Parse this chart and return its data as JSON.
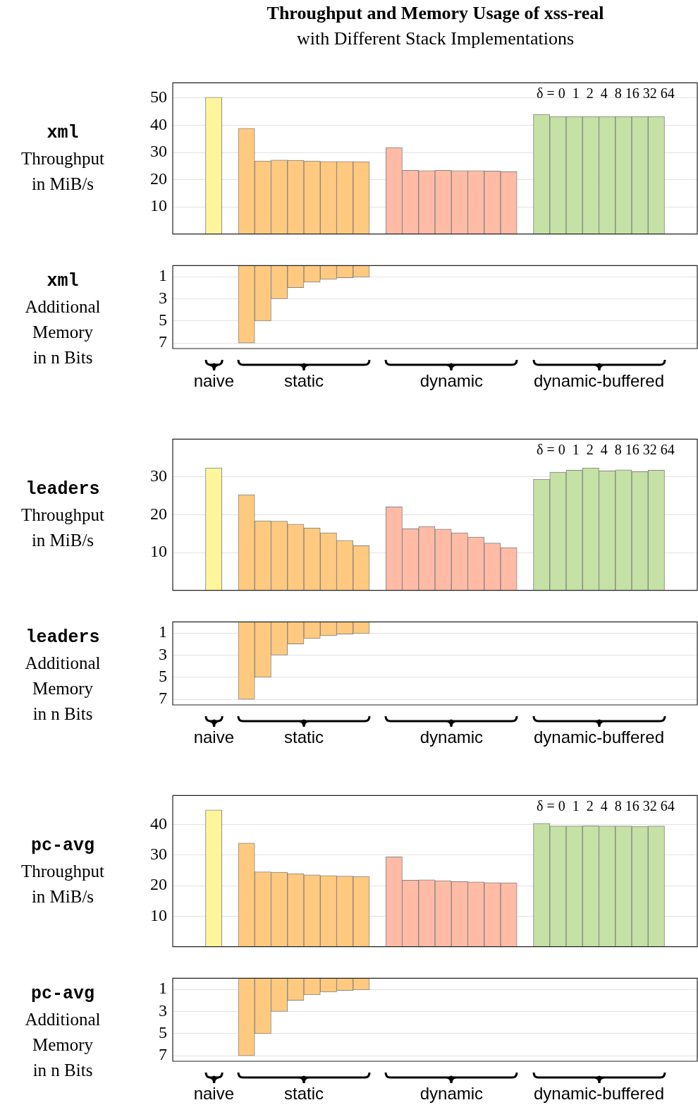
{
  "chart_data": [
    {
      "type": "bar",
      "title": "Throughput and Memory Usage of xss-real",
      "subtitle": "with Different Stack Implementations",
      "ylabel": "xml\nThroughput\nin MiB/s",
      "categories": [
        null,
        null,
        null,
        null,
        null,
        null,
        null,
        null,
        null,
        null,
        null,
        null,
        null,
        null,
        null,
        null,
        null,
        null,
        null,
        null,
        null,
        null,
        null,
        null,
        null,
        null,
        null,
        null,
        null,
        null,
        null,
        null
      ],
      "values": [
        null,
        null,
        50.3,
        null,
        38.9,
        26.9,
        27.2,
        27.1,
        26.9,
        26.7,
        26.7,
        26.6,
        null,
        31.8,
        23.4,
        23.3,
        23.4,
        23.3,
        23.3,
        23.2,
        22.9,
        null,
        44.0,
        43.2,
        43.2,
        43.2,
        43.2,
        43.2,
        43.2,
        43.2,
        null,
        null
      ],
      "colors": [
        null,
        null,
        "#fff59d",
        null,
        "#ffca7f",
        "#ffca7f",
        "#ffca7f",
        "#ffca7f",
        "#ffca7f",
        "#ffca7f",
        "#ffca7f",
        "#ffca7f",
        null,
        "#ffbba5",
        "#ffbba5",
        "#ffbba5",
        "#ffbba5",
        "#ffbba5",
        "#ffbba5",
        "#ffbba5",
        "#ffbba5",
        null,
        "#c5e1a5",
        "#c5e1a5",
        "#c5e1a5",
        "#c5e1a5",
        "#c5e1a5",
        "#c5e1a5",
        "#c5e1a5",
        "#c5e1a5",
        null,
        null
      ],
      "ylim": [
        0,
        55.6
      ],
      "yticks": [
        10,
        20,
        30,
        40,
        50
      ],
      "grid": "y",
      "tick_labels": "y",
      "legend": false,
      "annotations": [
        "δ = 0  1  2  4  8 16 32 64"
      ]
    },
    {
      "type": "bar",
      "ylabel": "xml\nAdditional\nMemory\nin n Bits",
      "legend": false,
      "categories": [
        null,
        null,
        null,
        null,
        null,
        null,
        null,
        null,
        null,
        null,
        null,
        null,
        null,
        null,
        null,
        null,
        null,
        null,
        null,
        null,
        null,
        null,
        null,
        null,
        null,
        null,
        null,
        null,
        null,
        null,
        null,
        null
      ],
      "values": [
        null,
        null,
        null,
        null,
        7,
        5,
        3,
        2,
        1.5,
        1.25,
        1.1,
        1.05,
        null,
        null,
        null,
        null,
        null,
        null,
        null,
        null,
        null,
        null,
        null,
        null,
        null,
        null,
        null,
        null,
        null,
        null,
        null,
        null
      ],
      "colors": [
        null,
        null,
        "#fff59d",
        null,
        "#ffca7f",
        "#ffca7f",
        "#ffca7f",
        "#ffca7f",
        "#ffca7f",
        "#ffca7f",
        "#ffca7f",
        "#ffca7f",
        null,
        "#ffbba5",
        "#ffbba5",
        "#ffbba5",
        "#ffbba5",
        "#ffbba5",
        "#ffbba5",
        "#ffbba5",
        "#ffbba5",
        null,
        "#c5e1a5",
        "#c5e1a5",
        "#c5e1a5",
        "#c5e1a5",
        "#c5e1a5",
        "#c5e1a5",
        "#c5e1a5",
        "#c5e1a5",
        null,
        null
      ],
      "ylim": [
        7.5,
        0
      ],
      "yticks": [
        1,
        3,
        5,
        7
      ],
      "grid": "y",
      "tick_labels": "y",
      "annotations": [
        "naive",
        "static",
        "dynamic",
        "dynamic-buffered"
      ]
    },
    {
      "type": "bar",
      "ylabel": "leaders\nThroughput\nin MiB/s",
      "categories": [
        null,
        null,
        null,
        null,
        null,
        null,
        null,
        null,
        null,
        null,
        null,
        null,
        null,
        null,
        null,
        null,
        null,
        null,
        null,
        null,
        null,
        null,
        null,
        null,
        null,
        null,
        null,
        null,
        null,
        null,
        null,
        null
      ],
      "values": [
        null,
        null,
        32.4,
        null,
        25.3,
        18.4,
        18.3,
        17.5,
        16.5,
        15.2,
        13.2,
        11.8,
        null,
        22.1,
        16.3,
        16.9,
        16.2,
        15.2,
        14.1,
        12.5,
        11.3,
        null,
        29.4,
        31.3,
        31.8,
        32.4,
        31.6,
        31.9,
        31.4,
        31.8,
        null,
        null
      ],
      "colors": [
        null,
        null,
        "#fff59d",
        null,
        "#ffca7f",
        "#ffca7f",
        "#ffca7f",
        "#ffca7f",
        "#ffca7f",
        "#ffca7f",
        "#ffca7f",
        "#ffca7f",
        null,
        "#ffbba5",
        "#ffbba5",
        "#ffbba5",
        "#ffbba5",
        "#ffbba5",
        "#ffbba5",
        "#ffbba5",
        "#ffbba5",
        null,
        "#c5e1a5",
        "#c5e1a5",
        "#c5e1a5",
        "#c5e1a5",
        "#c5e1a5",
        "#c5e1a5",
        "#c5e1a5",
        "#c5e1a5",
        null,
        null
      ],
      "ylim": [
        0,
        40
      ],
      "yticks": [
        10,
        20,
        30
      ],
      "grid": "y",
      "tick_labels": "y",
      "legend": false,
      "annotations": [
        "δ = 0  1  2  4  8 16 32 64"
      ]
    },
    {
      "type": "bar",
      "ylabel": "leaders\nAdditional\nMemory\nin n Bits",
      "legend": false,
      "categories": [
        null,
        null,
        null,
        null,
        null,
        null,
        null,
        null,
        null,
        null,
        null,
        null,
        null,
        null,
        null,
        null,
        null,
        null,
        null,
        null,
        null,
        null,
        null,
        null,
        null,
        null,
        null,
        null,
        null,
        null,
        null,
        null
      ],
      "values": [
        null,
        null,
        null,
        null,
        7,
        5,
        3,
        2,
        1.5,
        1.25,
        1.1,
        1.05,
        null,
        null,
        null,
        null,
        null,
        null,
        null,
        null,
        null,
        null,
        null,
        null,
        null,
        null,
        null,
        null,
        null,
        null,
        null,
        null
      ],
      "colors": [
        null,
        null,
        "#fff59d",
        null,
        "#ffca7f",
        "#ffca7f",
        "#ffca7f",
        "#ffca7f",
        "#ffca7f",
        "#ffca7f",
        "#ffca7f",
        "#ffca7f",
        null,
        "#ffbba5",
        "#ffbba5",
        "#ffbba5",
        "#ffbba5",
        "#ffbba5",
        "#ffbba5",
        "#ffbba5",
        "#ffbba5",
        null,
        "#c5e1a5",
        "#c5e1a5",
        "#c5e1a5",
        "#c5e1a5",
        "#c5e1a5",
        "#c5e1a5",
        "#c5e1a5",
        "#c5e1a5",
        null,
        null
      ],
      "ylim": [
        7.5,
        0
      ],
      "yticks": [
        1,
        3,
        5,
        7
      ],
      "grid": "y",
      "tick_labels": "y",
      "annotations": [
        "naive",
        "static",
        "dynamic",
        "dynamic-buffered"
      ]
    },
    {
      "type": "bar",
      "ylabel": "pc-avg\nThroughput\nin MiB/s",
      "categories": [
        null,
        null,
        null,
        null,
        null,
        null,
        null,
        null,
        null,
        null,
        null,
        null,
        null,
        null,
        null,
        null,
        null,
        null,
        null,
        null,
        null,
        null,
        null,
        null,
        null,
        null,
        null,
        null,
        null,
        null,
        null,
        null
      ],
      "values": [
        null,
        null,
        44.8,
        null,
        33.9,
        24.5,
        24.4,
        23.9,
        23.5,
        23.3,
        23.1,
        23.0,
        null,
        29.4,
        21.8,
        21.9,
        21.6,
        21.3,
        21.2,
        21.0,
        20.9,
        null,
        40.4,
        39.5,
        39.5,
        39.6,
        39.5,
        39.5,
        39.4,
        39.5,
        null,
        null
      ],
      "colors": [
        null,
        null,
        "#fff59d",
        null,
        "#ffca7f",
        "#ffca7f",
        "#ffca7f",
        "#ffca7f",
        "#ffca7f",
        "#ffca7f",
        "#ffca7f",
        "#ffca7f",
        null,
        "#ffbba5",
        "#ffbba5",
        "#ffbba5",
        "#ffbba5",
        "#ffbba5",
        "#ffbba5",
        "#ffbba5",
        "#ffbba5",
        null,
        "#c5e1a5",
        "#c5e1a5",
        "#c5e1a5",
        "#c5e1a5",
        "#c5e1a5",
        "#c5e1a5",
        "#c5e1a5",
        "#c5e1a5",
        null,
        null
      ],
      "ylim": [
        0,
        49.5
      ],
      "yticks": [
        10,
        20,
        30,
        40
      ],
      "grid": "y",
      "tick_labels": "y",
      "legend": false,
      "annotations": [
        "δ = 0  1  2  4  8 16 32 64"
      ]
    },
    {
      "type": "bar",
      "ylabel": "pc-avg\nAdditional\nMemory\nin n Bits",
      "legend": false,
      "categories": [
        null,
        null,
        null,
        null,
        null,
        null,
        null,
        null,
        null,
        null,
        null,
        null,
        null,
        null,
        null,
        null,
        null,
        null,
        null,
        null,
        null,
        null,
        null,
        null,
        null,
        null,
        null,
        null,
        null,
        null,
        null,
        null
      ],
      "values": [
        null,
        null,
        null,
        null,
        7,
        5,
        3,
        2,
        1.5,
        1.25,
        1.1,
        1.05,
        null,
        null,
        null,
        null,
        null,
        null,
        null,
        null,
        null,
        null,
        null,
        null,
        null,
        null,
        null,
        null,
        null,
        null,
        null,
        null
      ],
      "colors": [
        null,
        null,
        "#fff59d",
        null,
        "#ffca7f",
        "#ffca7f",
        "#ffca7f",
        "#ffca7f",
        "#ffca7f",
        "#ffca7f",
        "#ffca7f",
        "#ffca7f",
        null,
        "#ffbba5",
        "#ffbba5",
        "#ffbba5",
        "#ffbba5",
        "#ffbba5",
        "#ffbba5",
        "#ffbba5",
        "#ffbba5",
        null,
        "#c5e1a5",
        "#c5e1a5",
        "#c5e1a5",
        "#c5e1a5",
        "#c5e1a5",
        "#c5e1a5",
        "#c5e1a5",
        "#c5e1a5",
        null,
        null
      ],
      "ylim": [
        7.5,
        0
      ],
      "yticks": [
        1,
        3,
        5,
        7
      ],
      "grid": "y",
      "tick_labels": "y",
      "annotations": [
        "naive",
        "static",
        "dynamic",
        "dynamic-buffered"
      ]
    }
  ]
}
